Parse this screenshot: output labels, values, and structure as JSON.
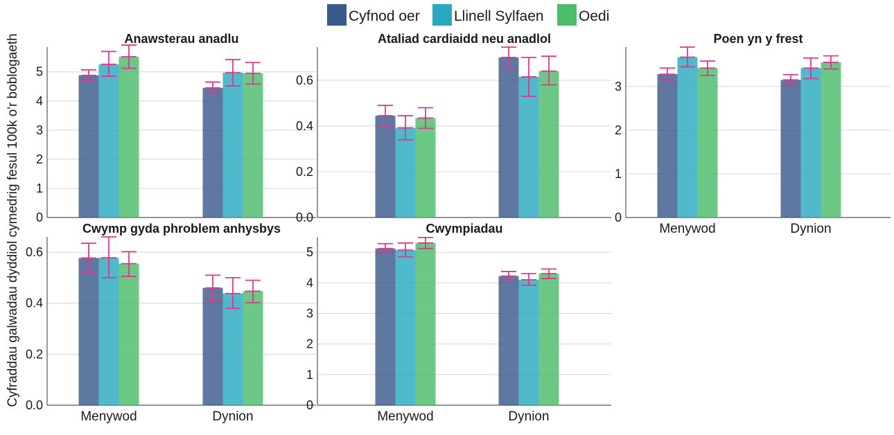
{
  "chart_data": {
    "type": "bar",
    "ylabel": "Cyfraddau galwadau dyddiol cymedrig fesul 100k o'r boblogaeth",
    "legend_position": "top-center",
    "grid": "horizontal",
    "errorbar_color": "#d63c8a",
    "series_meta": [
      {
        "name": "Cyfnod oer",
        "color": "#3b5a8c"
      },
      {
        "name": "Llinell Sylfaen",
        "color": "#29a9c0"
      },
      {
        "name": "Oedi",
        "color": "#4cbd6a"
      }
    ],
    "categories": [
      "Menywod",
      "Dynion"
    ],
    "panels": [
      {
        "title": "Anawsterau anadlu",
        "ylim": [
          0,
          5.85
        ],
        "yticks": [
          0,
          1,
          2,
          3,
          4,
          5
        ],
        "show_categories": false,
        "series": [
          {
            "name": "Cyfnod oer",
            "values": [
              4.88,
              4.45
            ],
            "err_low": [
              4.7,
              4.25
            ],
            "err_high": [
              5.07,
              4.65
            ]
          },
          {
            "name": "Llinell Sylfaen",
            "values": [
              5.26,
              4.97
            ],
            "err_low": [
              4.85,
              4.52
            ],
            "err_high": [
              5.7,
              5.42
            ]
          },
          {
            "name": "Oedi",
            "values": [
              5.52,
              4.95
            ],
            "err_low": [
              5.12,
              4.58
            ],
            "err_high": [
              5.92,
              5.32
            ]
          }
        ]
      },
      {
        "title": "Ataliad cardiaidd neu anadlol",
        "ylim": [
          0,
          0.745
        ],
        "yticks": [
          "0.0",
          "0.2",
          "0.4",
          "0.6"
        ],
        "show_categories": false,
        "series": [
          {
            "name": "Cyfnod oer",
            "values": [
              0.445,
              0.7
            ],
            "err_low": [
              0.4,
              0.655
            ],
            "err_high": [
              0.49,
              0.745
            ]
          },
          {
            "name": "Llinell Sylfaen",
            "values": [
              0.392,
              0.615
            ],
            "err_low": [
              0.34,
              0.53
            ],
            "err_high": [
              0.445,
              0.7
            ]
          },
          {
            "name": "Oedi",
            "values": [
              0.435,
              0.64
            ],
            "err_low": [
              0.39,
              0.58
            ],
            "err_high": [
              0.48,
              0.705
            ]
          }
        ]
      },
      {
        "title": "Poen yn y frest",
        "ylim": [
          0,
          3.9
        ],
        "yticks": [
          0,
          1,
          2,
          3
        ],
        "show_categories": true,
        "series": [
          {
            "name": "Cyfnod oer",
            "values": [
              3.28,
              3.15
            ],
            "err_low": [
              3.15,
              3.03
            ],
            "err_high": [
              3.42,
              3.27
            ]
          },
          {
            "name": "Llinell Sylfaen",
            "values": [
              3.67,
              3.42
            ],
            "err_low": [
              3.45,
              3.18
            ],
            "err_high": [
              3.9,
              3.65
            ]
          },
          {
            "name": "Oedi",
            "values": [
              3.42,
              3.55
            ],
            "err_low": [
              3.25,
              3.4
            ],
            "err_high": [
              3.58,
              3.7
            ]
          }
        ]
      },
      {
        "title": "Cwymp gyda phroblem anhysbys",
        "ylim": [
          0,
          0.66
        ],
        "yticks": [
          "0.0",
          "0.2",
          "0.4",
          "0.6"
        ],
        "show_categories": true,
        "series": [
          {
            "name": "Cyfnod oer",
            "values": [
              0.577,
              0.46
            ],
            "err_low": [
              0.52,
              0.41
            ],
            "err_high": [
              0.635,
              0.51
            ]
          },
          {
            "name": "Llinell Sylfaen",
            "values": [
              0.578,
              0.438
            ],
            "err_low": [
              0.5,
              0.38
            ],
            "err_high": [
              0.66,
              0.5
            ]
          },
          {
            "name": "Oedi",
            "values": [
              0.555,
              0.447
            ],
            "err_low": [
              0.505,
              0.402
            ],
            "err_high": [
              0.602,
              0.49
            ]
          }
        ]
      },
      {
        "title": "Cwympiadau",
        "ylim": [
          0,
          5.5
        ],
        "yticks": [
          0,
          1,
          2,
          3,
          4,
          5
        ],
        "show_categories": true,
        "series": [
          {
            "name": "Cyfnod oer",
            "values": [
              5.12,
              4.22
            ],
            "err_low": [
              4.97,
              4.1
            ],
            "err_high": [
              5.28,
              4.37
            ]
          },
          {
            "name": "Llinell Sylfaen",
            "values": [
              5.07,
              4.1
            ],
            "err_low": [
              4.85,
              3.92
            ],
            "err_high": [
              5.3,
              4.3
            ]
          },
          {
            "name": "Oedi",
            "values": [
              5.3,
              4.3
            ],
            "err_low": [
              5.12,
              4.14
            ],
            "err_high": [
              5.48,
              4.45
            ]
          }
        ]
      }
    ]
  }
}
